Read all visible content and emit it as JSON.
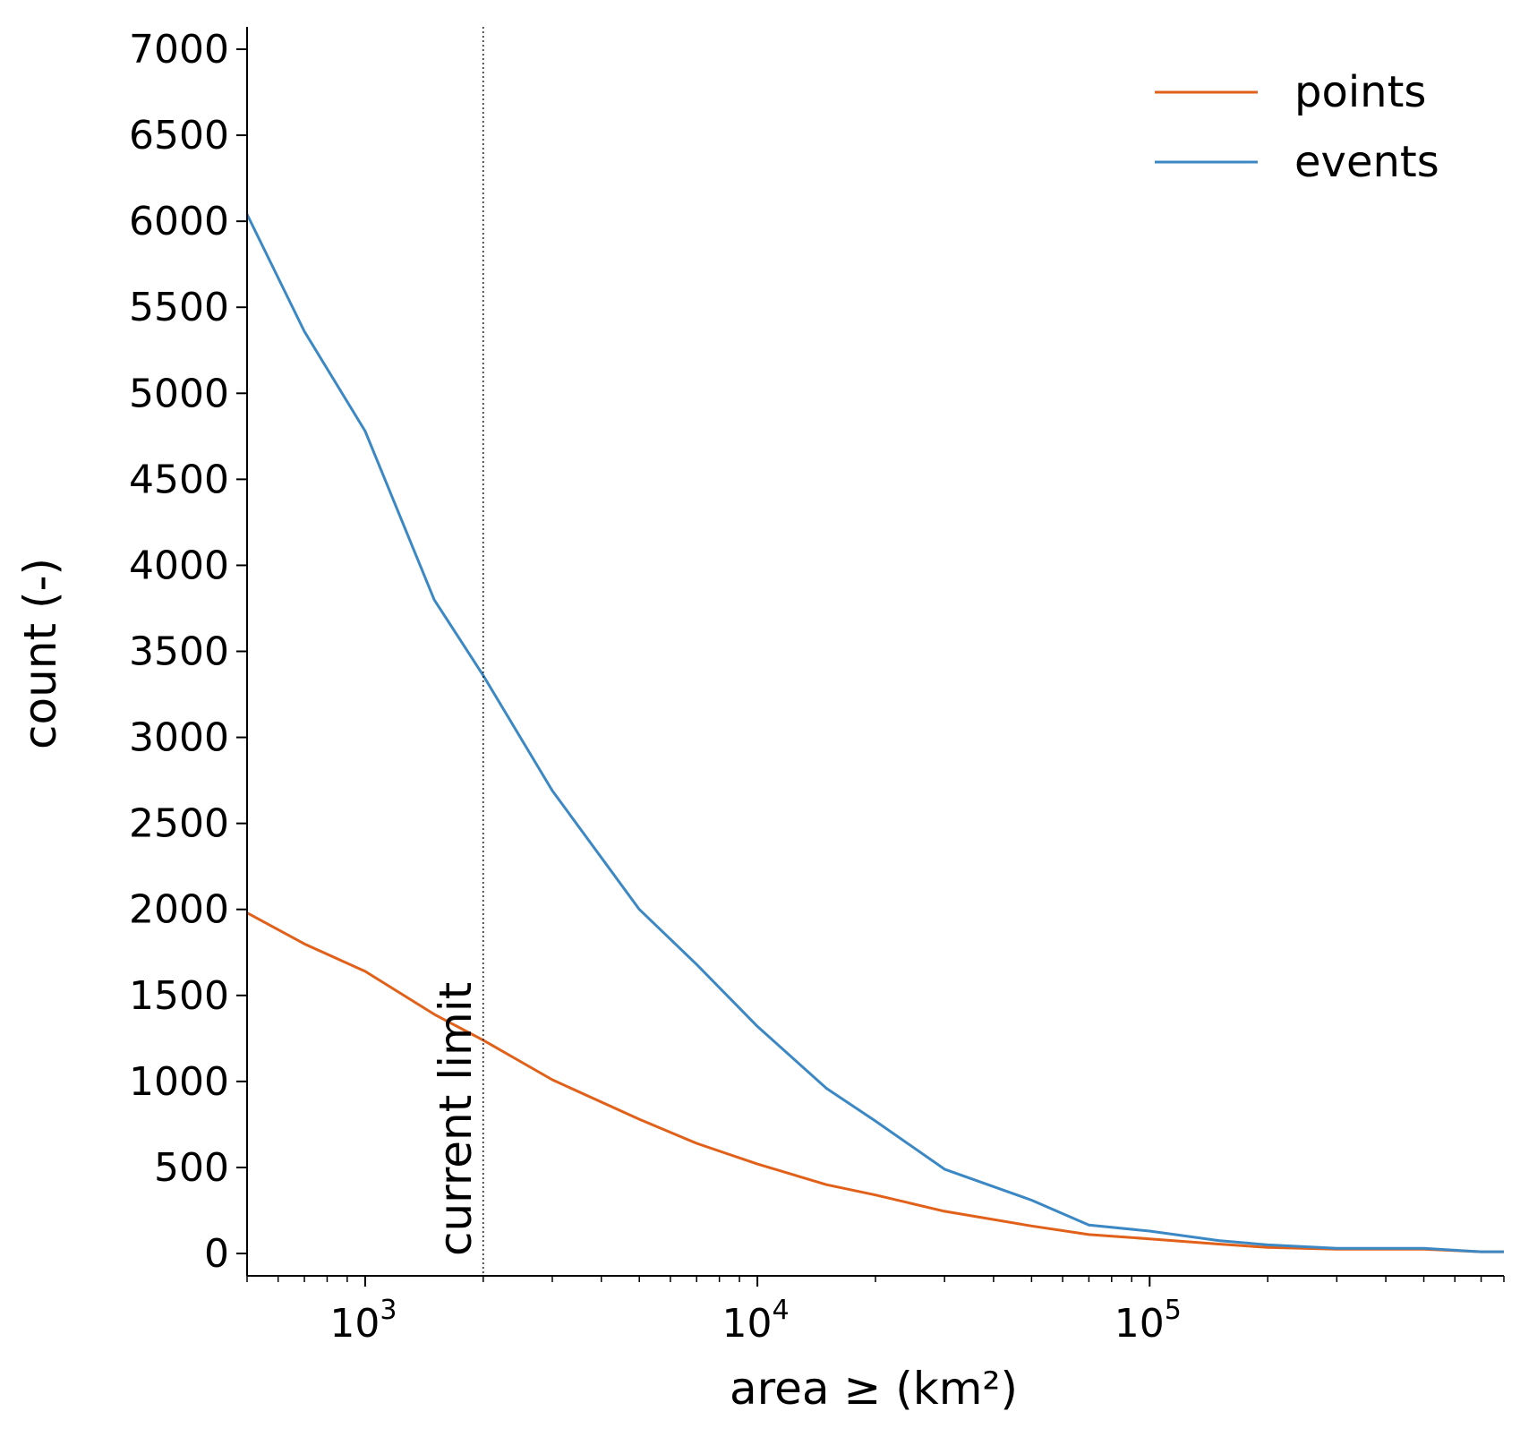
{
  "chart_data": {
    "type": "line",
    "xlabel": "area ≥ (km²)",
    "ylabel": "count (-)",
    "xscale": "log",
    "xlim": [
      500,
      800000
    ],
    "ylim": [
      -130,
      7130
    ],
    "x_ticks": [
      {
        "value": 1000,
        "base": "10",
        "exp": "3"
      },
      {
        "value": 10000,
        "base": "10",
        "exp": "4"
      },
      {
        "value": 100000,
        "base": "10",
        "exp": "5"
      }
    ],
    "y_ticks": [
      0,
      500,
      1000,
      1500,
      2000,
      2500,
      3000,
      3500,
      4000,
      4500,
      5000,
      5500,
      6000,
      6500,
      7000
    ],
    "grid": false,
    "legend_position": "top-right",
    "series": [
      {
        "name": "points",
        "color": "#e1611b",
        "x": [
          500,
          700,
          1000,
          1500,
          2000,
          3000,
          5000,
          7000,
          10000,
          15000,
          20000,
          30000,
          50000,
          70000,
          100000,
          150000,
          200000,
          300000,
          500000,
          700000,
          800000
        ],
        "y": [
          1980,
          1800,
          1640,
          1390,
          1240,
          1010,
          780,
          640,
          520,
          400,
          340,
          245,
          160,
          110,
          85,
          55,
          35,
          25,
          25,
          10,
          10
        ]
      },
      {
        "name": "events",
        "color": "#3c88c4",
        "x": [
          500,
          700,
          1000,
          1500,
          2000,
          3000,
          5000,
          7000,
          10000,
          15000,
          20000,
          30000,
          50000,
          70000,
          100000,
          150000,
          200000,
          300000,
          500000,
          700000,
          800000
        ],
        "y": [
          6040,
          5360,
          4780,
          3800,
          3360,
          2690,
          2000,
          1680,
          1320,
          960,
          770,
          490,
          310,
          165,
          130,
          75,
          50,
          30,
          30,
          10,
          10
        ]
      }
    ],
    "annotations": [
      {
        "type": "vline",
        "x": 2000,
        "style": "dotted",
        "label": "current limit"
      }
    ]
  }
}
